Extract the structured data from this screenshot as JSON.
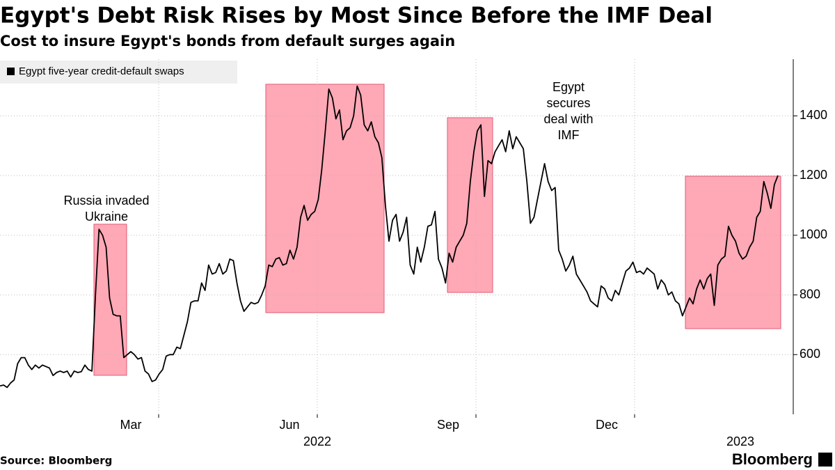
{
  "chart_data": {
    "type": "line",
    "title": "Egypt's Debt Risk Rises by Most Since Before the IMF Deal",
    "subtitle": "Cost to insure Egypt's bonds from default surges again",
    "source": "Source: Bloomberg",
    "brand": "Bloomberg",
    "series": [
      {
        "name": "Egypt five-year credit-default swaps",
        "color": "#000000",
        "values": [
          495,
          498,
          490,
          505,
          515,
          570,
          590,
          590,
          565,
          550,
          565,
          555,
          565,
          560,
          555,
          530,
          540,
          545,
          540,
          545,
          525,
          545,
          540,
          543,
          565,
          550,
          545,
          800,
          1020,
          1000,
          960,
          790,
          735,
          730,
          730,
          590,
          600,
          610,
          600,
          585,
          590,
          545,
          535,
          510,
          515,
          535,
          550,
          595,
          600,
          600,
          625,
          620,
          665,
          710,
          775,
          780,
          780,
          840,
          815,
          900,
          870,
          875,
          905,
          870,
          880,
          920,
          915,
          840,
          780,
          745,
          760,
          775,
          770,
          775,
          800,
          830,
          900,
          895,
          920,
          925,
          900,
          905,
          950,
          920,
          960,
          1060,
          1100,
          1050,
          1070,
          1080,
          1120,
          1220,
          1350,
          1490,
          1460,
          1390,
          1420,
          1320,
          1350,
          1360,
          1400,
          1500,
          1470,
          1370,
          1350,
          1380,
          1330,
          1310,
          1260,
          1100,
          980,
          1050,
          1070,
          980,
          1010,
          1060,
          900,
          870,
          960,
          910,
          960,
          1030,
          1035,
          1080,
          920,
          890,
          840,
          940,
          910,
          960,
          980,
          1000,
          1040,
          1180,
          1280,
          1350,
          1370,
          1130,
          1250,
          1240,
          1280,
          1300,
          1320,
          1280,
          1350,
          1290,
          1330,
          1310,
          1290,
          1180,
          1040,
          1060,
          1120,
          1180,
          1240,
          1180,
          1150,
          1160,
          950,
          920,
          880,
          900,
          930,
          870,
          850,
          830,
          810,
          780,
          770,
          760,
          830,
          820,
          790,
          780,
          815,
          800,
          840,
          880,
          890,
          910,
          875,
          880,
          870,
          890,
          880,
          870,
          820,
          850,
          835,
          800,
          810,
          780,
          770,
          730,
          760,
          790,
          770,
          820,
          850,
          820,
          855,
          870,
          765,
          900,
          920,
          930,
          1030,
          1000,
          980,
          940,
          920,
          930,
          960,
          980,
          1060,
          1080,
          1180,
          1140,
          1090,
          1170,
          1200
        ]
      }
    ],
    "xlim": [
      "2021-12",
      "2023-03"
    ],
    "xticks": [
      {
        "value": "2022-03",
        "label": "Mar"
      },
      {
        "value": "2022-06",
        "label": "Jun"
      },
      {
        "value": "2022-09",
        "label": "Sep"
      },
      {
        "value": "2022-12",
        "label": "Dec"
      }
    ],
    "xticks_year": [
      {
        "value": "2022-06",
        "label": "2022"
      },
      {
        "value": "2023-02",
        "label": "2023"
      }
    ],
    "ylim": [
      400,
      1590
    ],
    "yticks": [
      600,
      800,
      1000,
      1200,
      1400
    ],
    "grid": true,
    "legend": "top-left",
    "annotations": [
      [
        "Russia invaded",
        "Ukraine"
      ],
      [
        "Egypt",
        "secures",
        "deal with",
        "IMF"
      ]
    ]
  }
}
